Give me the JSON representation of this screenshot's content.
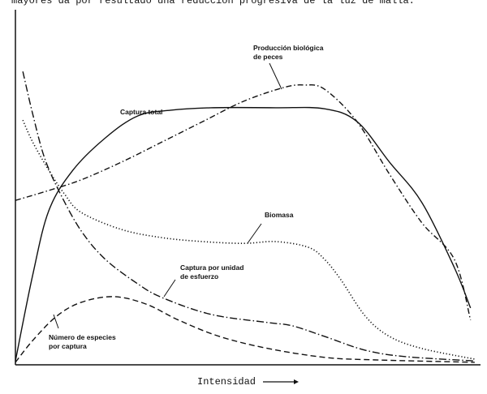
{
  "document": {
    "top_text": "mayores da por resultado una reducción progresiva de la luz de malla."
  },
  "chart_data": {
    "type": "line",
    "title": "",
    "xlabel": "Intensidad",
    "ylabel": "",
    "xlim": [
      0,
      100
    ],
    "ylim": [
      0,
      100
    ],
    "grid": false,
    "legend": "none (curves labelled directly)",
    "series": [
      {
        "name": "Captura total",
        "style": "solid",
        "x": [
          0,
          3.7,
          7.2,
          12.4,
          19.4,
          26.4,
          33.5,
          42.2,
          56.2,
          66.7,
          73.7,
          80.7,
          87.7,
          94.7,
          98.2
        ],
        "y": [
          1.1,
          25.1,
          43.4,
          54.8,
          63.9,
          70.1,
          71.7,
          72.4,
          72.4,
          72.1,
          68.5,
          57.1,
          45.7,
          27.4,
          16.0
        ]
      },
      {
        "name": "Producción biológica de peces",
        "style": "dash-dot",
        "x": [
          0,
          7.2,
          14.2,
          22.9,
          31.7,
          40.4,
          49.2,
          57.9,
          62.3,
          66.7,
          73.7,
          80.7,
          87.7,
          94.7,
          98.2
        ],
        "y": [
          46.3,
          49.1,
          52.1,
          57.1,
          62.8,
          68.5,
          74.2,
          78.1,
          78.8,
          77.6,
          68.5,
          53.7,
          40.0,
          29.7,
          12.6
        ]
      },
      {
        "name": "Biomasa",
        "style": "dotted",
        "x": [
          1.6,
          3.7,
          7.2,
          10.7,
          14.2,
          22.9,
          31.7,
          40.5,
          49.2,
          56.2,
          63.2,
          66.7,
          70.2,
          75.5,
          80.7,
          87.7,
          99.1
        ],
        "y": [
          68.9,
          62.8,
          54.8,
          47.9,
          42.9,
          38.1,
          35.8,
          34.7,
          34.2,
          34.7,
          33.1,
          29.7,
          24.0,
          13.7,
          8.0,
          4.6,
          1.6
        ]
      },
      {
        "name": "Captura por unidad de esfuerzo",
        "style": "long-dash-dot",
        "x": [
          1.6,
          3.7,
          6.3,
          9.8,
          14.2,
          19.4,
          26.4,
          31.7,
          42.2,
          54.5,
          59.7,
          66.7,
          75.5,
          84.2,
          99.1
        ],
        "y": [
          82.6,
          70.8,
          58.2,
          47.9,
          37.7,
          29.7,
          22.8,
          18.9,
          14.2,
          11.9,
          11.0,
          8.0,
          4.1,
          2.3,
          1.1
        ]
      },
      {
        "name": "Número de especies por captura",
        "style": "dashed",
        "x": [
          0,
          3.7,
          8.9,
          14.2,
          21.2,
          28.2,
          35.2,
          44.0,
          54.5,
          66.7,
          77.2,
          99.1
        ],
        "y": [
          0.7,
          6.8,
          13.7,
          17.6,
          19.2,
          17.1,
          12.6,
          8.0,
          4.6,
          2.1,
          1.4,
          0.7
        ]
      }
    ],
    "annotations": [
      {
        "lines": [
          "Producción biológica",
          "de peces"
        ]
      },
      {
        "lines": [
          "Captura total"
        ]
      },
      {
        "lines": [
          "Biomasa"
        ]
      },
      {
        "lines": [
          "Captura por unidad",
          "de esfuerzo"
        ]
      },
      {
        "lines": [
          "Número de especies",
          "por captura"
        ]
      }
    ]
  }
}
